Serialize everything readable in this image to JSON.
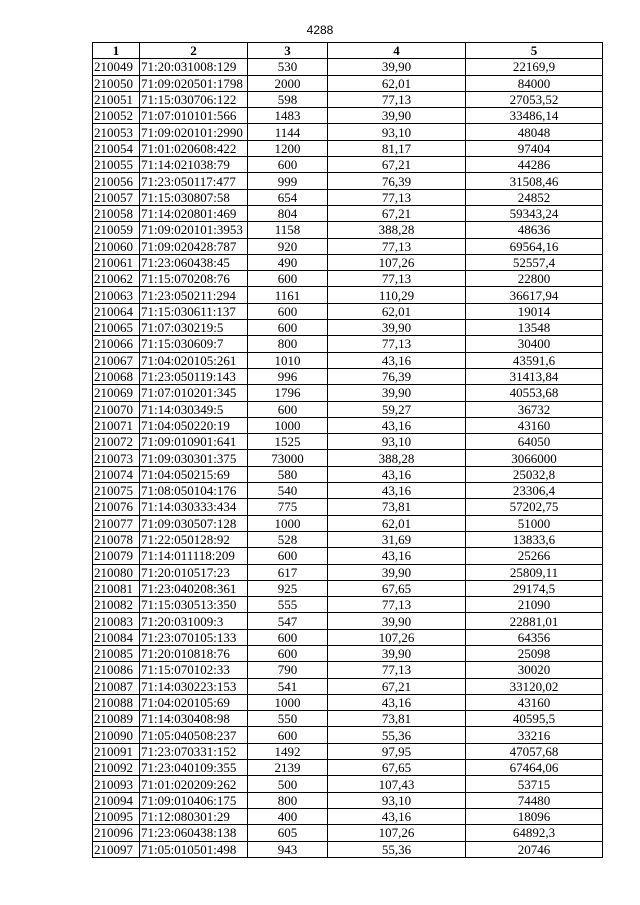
{
  "page_number": "4288",
  "table": {
    "headers": [
      "1",
      "2",
      "3",
      "4",
      "5"
    ],
    "rows": [
      [
        "210049",
        "71:20:031008:129",
        "530",
        "39,90",
        "22169,9"
      ],
      [
        "210050",
        "71:09:020501:1798",
        "2000",
        "62,01",
        "84000"
      ],
      [
        "210051",
        "71:15:030706:122",
        "598",
        "77,13",
        "27053,52"
      ],
      [
        "210052",
        "71:07:010101:566",
        "1483",
        "39,90",
        "33486,14"
      ],
      [
        "210053",
        "71:09:020101:2990",
        "1144",
        "93,10",
        "48048"
      ],
      [
        "210054",
        "71:01:020608:422",
        "1200",
        "81,17",
        "97404"
      ],
      [
        "210055",
        "71:14:021038:79",
        "600",
        "67,21",
        "44286"
      ],
      [
        "210056",
        "71:23:050117:477",
        "999",
        "76,39",
        "31508,46"
      ],
      [
        "210057",
        "71:15:030807:58",
        "654",
        "77,13",
        "24852"
      ],
      [
        "210058",
        "71:14:020801:469",
        "804",
        "67,21",
        "59343,24"
      ],
      [
        "210059",
        "71:09:020101:3953",
        "1158",
        "388,28",
        "48636"
      ],
      [
        "210060",
        "71:09:020428:787",
        "920",
        "77,13",
        "69564,16"
      ],
      [
        "210061",
        "71:23:060438:45",
        "490",
        "107,26",
        "52557,4"
      ],
      [
        "210062",
        "71:15:070208:76",
        "600",
        "77,13",
        "22800"
      ],
      [
        "210063",
        "71:23:050211:294",
        "1161",
        "110,29",
        "36617,94"
      ],
      [
        "210064",
        "71:15:030611:137",
        "600",
        "62,01",
        "19014"
      ],
      [
        "210065",
        "71:07:030219:5",
        "600",
        "39,90",
        "13548"
      ],
      [
        "210066",
        "71:15:030609:7",
        "800",
        "77,13",
        "30400"
      ],
      [
        "210067",
        "71:04:020105:261",
        "1010",
        "43,16",
        "43591,6"
      ],
      [
        "210068",
        "71:23:050119:143",
        "996",
        "76,39",
        "31413,84"
      ],
      [
        "210069",
        "71:07:010201:345",
        "1796",
        "39,90",
        "40553,68"
      ],
      [
        "210070",
        "71:14:030349:5",
        "600",
        "59,27",
        "36732"
      ],
      [
        "210071",
        "71:04:050220:19",
        "1000",
        "43,16",
        "43160"
      ],
      [
        "210072",
        "71:09:010901:641",
        "1525",
        "93,10",
        "64050"
      ],
      [
        "210073",
        "71:09:030301:375",
        "73000",
        "388,28",
        "3066000"
      ],
      [
        "210074",
        "71:04:050215:69",
        "580",
        "43,16",
        "25032,8"
      ],
      [
        "210075",
        "71:08:050104:176",
        "540",
        "43,16",
        "23306,4"
      ],
      [
        "210076",
        "71:14:030333:434",
        "775",
        "73,81",
        "57202,75"
      ],
      [
        "210077",
        "71:09:030507:128",
        "1000",
        "62,01",
        "51000"
      ],
      [
        "210078",
        "71:22:050128:92",
        "528",
        "31,69",
        "13833,6"
      ],
      [
        "210079",
        "71:14:011118:209",
        "600",
        "43,16",
        "25266"
      ],
      [
        "210080",
        "71:20:010517:23",
        "617",
        "39,90",
        "25809,11"
      ],
      [
        "210081",
        "71:23:040208:361",
        "925",
        "67,65",
        "29174,5"
      ],
      [
        "210082",
        "71:15:030513:350",
        "555",
        "77,13",
        "21090"
      ],
      [
        "210083",
        "71:20:031009:3",
        "547",
        "39,90",
        "22881,01"
      ],
      [
        "210084",
        "71:23:070105:133",
        "600",
        "107,26",
        "64356"
      ],
      [
        "210085",
        "71:20:010818:76",
        "600",
        "39,90",
        "25098"
      ],
      [
        "210086",
        "71:15:070102:33",
        "790",
        "77,13",
        "30020"
      ],
      [
        "210087",
        "71:14:030223:153",
        "541",
        "67,21",
        "33120,02"
      ],
      [
        "210088",
        "71:04:020105:69",
        "1000",
        "43,16",
        "43160"
      ],
      [
        "210089",
        "71:14:030408:98",
        "550",
        "73,81",
        "40595,5"
      ],
      [
        "210090",
        "71:05:040508:237",
        "600",
        "55,36",
        "33216"
      ],
      [
        "210091",
        "71:23:070331:152",
        "1492",
        "97,95",
        "47057,68"
      ],
      [
        "210092",
        "71:23:040109:355",
        "2139",
        "67,65",
        "67464,06"
      ],
      [
        "210093",
        "71:01:020209:262",
        "500",
        "107,43",
        "53715"
      ],
      [
        "210094",
        "71:09:010406:175",
        "800",
        "93,10",
        "74480"
      ],
      [
        "210095",
        "71:12:080301:29",
        "400",
        "43,16",
        "18096"
      ],
      [
        "210096",
        "71:23:060438:138",
        "605",
        "107,26",
        "64892,3"
      ],
      [
        "210097",
        "71:05:010501:498",
        "943",
        "55,36",
        "20746"
      ]
    ]
  }
}
